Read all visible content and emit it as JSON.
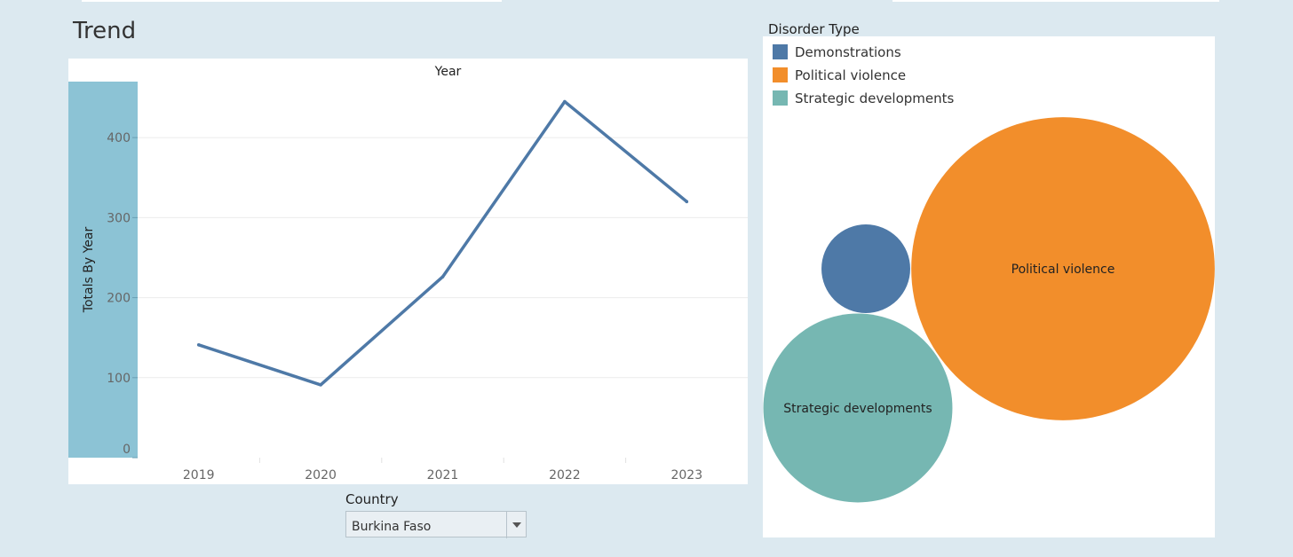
{
  "trend": {
    "title": "Trend",
    "axis_band_color": "#8cc3d5",
    "chart_data": {
      "type": "line",
      "title": "",
      "top_axis_label": "Year",
      "xlabel": "",
      "ylabel": "Totals By Year",
      "x": [
        "2019",
        "2020",
        "2021",
        "2022",
        "2023"
      ],
      "series": [
        {
          "values": [
            141,
            91,
            226,
            445,
            320
          ],
          "color": "#4e79a7"
        }
      ],
      "yticks": [
        0,
        100,
        200,
        300,
        400
      ],
      "ylim": [
        0,
        470
      ],
      "grid": true
    }
  },
  "filter": {
    "label": "Country",
    "selected": "Burkina Faso"
  },
  "disorder": {
    "legend_title": "Disorder Type",
    "chart_data": {
      "type": "bubble",
      "items": [
        {
          "label": "Demonstrations",
          "value": 26,
          "color": "#4e79a7",
          "show_label": false
        },
        {
          "label": "Political violence",
          "value": 304,
          "color": "#f28e2b",
          "show_label": true
        },
        {
          "label": "Strategic developments",
          "value": 118,
          "color": "#76b7b2",
          "show_label": true
        }
      ]
    }
  }
}
